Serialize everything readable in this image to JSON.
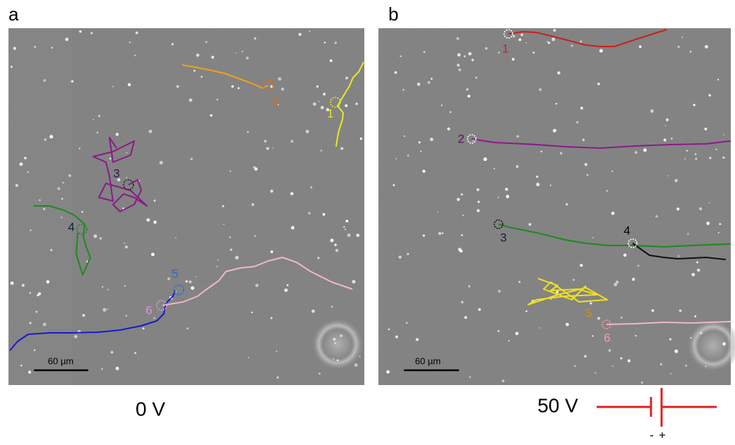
{
  "panels": [
    {
      "label": "a",
      "scale_bar": "60 µm",
      "voltage": "0 V",
      "tracks": [
        "1",
        "2",
        "3",
        "4",
        "5",
        "6"
      ]
    },
    {
      "label": "b",
      "scale_bar": "60 µm",
      "voltage": "50 V",
      "tracks": [
        "1",
        "2",
        "3",
        "4",
        "5",
        "6"
      ]
    }
  ],
  "battery": {
    "minus": "-",
    "plus": "+"
  }
}
